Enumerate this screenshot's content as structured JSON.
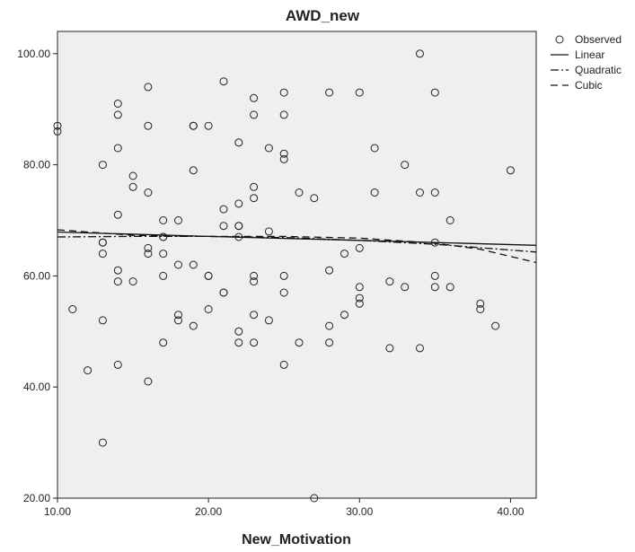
{
  "chart_data": {
    "type": "scatter",
    "title": "AWD_new",
    "xlabel": "New_Motivation",
    "ylabel": "",
    "xlim": [
      10,
      41.7
    ],
    "ylim": [
      20,
      104
    ],
    "x_ticks": [
      "10.00",
      "20.00",
      "30.00",
      "40.00"
    ],
    "y_ticks": [
      "20.00",
      "40.00",
      "60.00",
      "80.00",
      "100.00"
    ],
    "x_tick_values": [
      10,
      20,
      30,
      40
    ],
    "y_tick_values": [
      20,
      40,
      60,
      80,
      100
    ],
    "grid": false,
    "legend_position": "top-right",
    "legend": [
      "Observed",
      "Linear",
      "Quadratic",
      "Cubic"
    ],
    "series": [
      {
        "name": "Observed",
        "kind": "points",
        "points": [
          [
            10,
            87
          ],
          [
            10,
            86
          ],
          [
            11,
            54
          ],
          [
            12,
            43
          ],
          [
            13,
            80
          ],
          [
            13,
            66
          ],
          [
            13,
            66
          ],
          [
            13,
            64
          ],
          [
            13,
            52
          ],
          [
            13,
            30
          ],
          [
            14,
            91
          ],
          [
            14,
            89
          ],
          [
            14,
            83
          ],
          [
            14,
            71
          ],
          [
            14,
            61
          ],
          [
            14,
            59
          ],
          [
            14,
            44
          ],
          [
            15,
            78
          ],
          [
            15,
            76
          ],
          [
            15,
            59
          ],
          [
            16,
            94
          ],
          [
            16,
            87
          ],
          [
            16,
            75
          ],
          [
            16,
            65
          ],
          [
            16,
            64
          ],
          [
            16,
            41
          ],
          [
            17,
            70
          ],
          [
            17,
            67
          ],
          [
            17,
            67
          ],
          [
            17,
            64
          ],
          [
            17,
            60
          ],
          [
            17,
            48
          ],
          [
            18,
            70
          ],
          [
            18,
            62
          ],
          [
            18,
            53
          ],
          [
            18,
            52
          ],
          [
            19,
            87
          ],
          [
            19,
            87
          ],
          [
            19,
            79
          ],
          [
            19,
            62
          ],
          [
            19,
            51
          ],
          [
            20,
            87
          ],
          [
            20,
            60
          ],
          [
            20,
            60
          ],
          [
            20,
            54
          ],
          [
            21,
            95
          ],
          [
            21,
            72
          ],
          [
            21,
            69
          ],
          [
            21,
            57
          ],
          [
            21,
            57
          ],
          [
            22,
            84
          ],
          [
            22,
            73
          ],
          [
            22,
            69
          ],
          [
            22,
            69
          ],
          [
            22,
            67
          ],
          [
            22,
            50
          ],
          [
            22,
            48
          ],
          [
            23,
            92
          ],
          [
            23,
            89
          ],
          [
            23,
            76
          ],
          [
            23,
            74
          ],
          [
            23,
            60
          ],
          [
            23,
            59
          ],
          [
            23,
            53
          ],
          [
            23,
            48
          ],
          [
            24,
            83
          ],
          [
            24,
            68
          ],
          [
            24,
            52
          ],
          [
            25,
            93
          ],
          [
            25,
            89
          ],
          [
            25,
            82
          ],
          [
            25,
            81
          ],
          [
            25,
            60
          ],
          [
            25,
            57
          ],
          [
            25,
            44
          ],
          [
            26,
            75
          ],
          [
            26,
            48
          ],
          [
            27,
            74
          ],
          [
            27,
            20
          ],
          [
            28,
            93
          ],
          [
            28,
            61
          ],
          [
            28,
            51
          ],
          [
            28,
            48
          ],
          [
            29,
            64
          ],
          [
            29,
            53
          ],
          [
            30,
            93
          ],
          [
            30,
            65
          ],
          [
            30,
            58
          ],
          [
            30,
            56
          ],
          [
            30,
            55
          ],
          [
            31,
            83
          ],
          [
            31,
            75
          ],
          [
            32,
            59
          ],
          [
            32,
            47
          ],
          [
            33,
            80
          ],
          [
            33,
            58
          ],
          [
            34,
            100
          ],
          [
            34,
            75
          ],
          [
            34,
            47
          ],
          [
            35,
            93
          ],
          [
            35,
            75
          ],
          [
            35,
            66
          ],
          [
            35,
            60
          ],
          [
            35,
            58
          ],
          [
            36,
            70
          ],
          [
            36,
            58
          ],
          [
            38,
            55
          ],
          [
            38,
            54
          ],
          [
            39,
            51
          ],
          [
            40,
            79
          ]
        ]
      },
      {
        "name": "Linear",
        "kind": "line",
        "dash": "solid",
        "points": [
          [
            10,
            67.9
          ],
          [
            20,
            67.1
          ],
          [
            30,
            66.4
          ],
          [
            41.7,
            65.5
          ]
        ]
      },
      {
        "name": "Quadratic",
        "kind": "line",
        "dash": "dashdot",
        "points": [
          [
            10,
            67.0
          ],
          [
            15,
            67.1
          ],
          [
            20,
            67.1
          ],
          [
            25,
            66.9
          ],
          [
            30,
            66.4
          ],
          [
            35,
            65.7
          ],
          [
            41.7,
            64.3
          ]
        ]
      },
      {
        "name": "Cubic",
        "kind": "line",
        "dash": "dashed",
        "points": [
          [
            10,
            68.3
          ],
          [
            15,
            67.3
          ],
          [
            20,
            67.1
          ],
          [
            25,
            67.1
          ],
          [
            30,
            66.8
          ],
          [
            35,
            65.9
          ],
          [
            38,
            64.8
          ],
          [
            41.7,
            62.4
          ]
        ]
      }
    ]
  }
}
